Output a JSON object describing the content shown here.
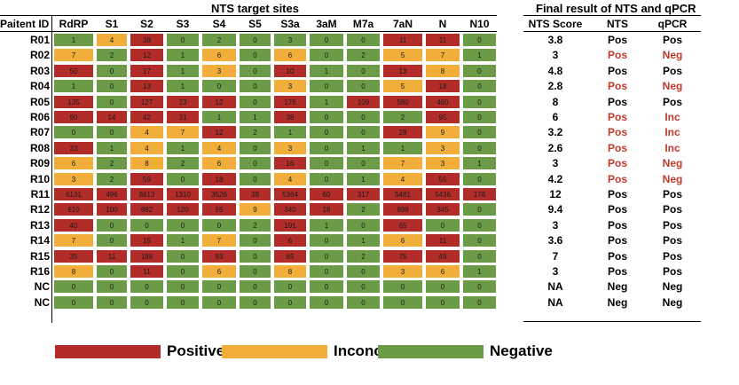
{
  "chart_data": {
    "type": "heatmap",
    "title": "NTS target sites",
    "row_header": "Paitent ID",
    "columns": [
      "RdRP",
      "S1",
      "S2",
      "S3",
      "S4",
      "S5",
      "S3a",
      "3aM",
      "M7a",
      "7aN",
      "N",
      "N10"
    ],
    "rows": [
      {
        "id": "R01",
        "values": [
          1,
          4,
          38,
          0,
          2,
          0,
          3,
          0,
          0,
          11,
          11,
          0
        ],
        "categories": [
          "g",
          "o",
          "r",
          "g",
          "g",
          "g",
          "g",
          "g",
          "g",
          "r",
          "r",
          "g"
        ]
      },
      {
        "id": "R02",
        "values": [
          7,
          2,
          12,
          1,
          6,
          0,
          6,
          0,
          2,
          5,
          7,
          1
        ],
        "categories": [
          "o",
          "g",
          "r",
          "g",
          "o",
          "g",
          "o",
          "g",
          "g",
          "o",
          "o",
          "g"
        ]
      },
      {
        "id": "R03",
        "values": [
          50,
          0,
          17,
          1,
          3,
          0,
          10,
          1,
          0,
          13,
          8,
          0
        ],
        "categories": [
          "r",
          "g",
          "r",
          "g",
          "o",
          "g",
          "r",
          "g",
          "g",
          "r",
          "o",
          "g"
        ]
      },
      {
        "id": "R04",
        "values": [
          1,
          0,
          13,
          1,
          0,
          0,
          3,
          0,
          0,
          5,
          18,
          0
        ],
        "categories": [
          "g",
          "g",
          "r",
          "g",
          "g",
          "g",
          "o",
          "g",
          "g",
          "o",
          "r",
          "g"
        ]
      },
      {
        "id": "R05",
        "values": [
          135,
          0,
          127,
          23,
          12,
          0,
          176,
          1,
          109,
          580,
          460,
          0
        ],
        "categories": [
          "r",
          "g",
          "r",
          "r",
          "r",
          "g",
          "r",
          "g",
          "r",
          "r",
          "r",
          "g"
        ]
      },
      {
        "id": "R06",
        "values": [
          90,
          14,
          42,
          31,
          1,
          1,
          38,
          0,
          0,
          2,
          95,
          0
        ],
        "categories": [
          "r",
          "r",
          "r",
          "r",
          "g",
          "g",
          "r",
          "g",
          "g",
          "g",
          "r",
          "g"
        ]
      },
      {
        "id": "R07",
        "values": [
          0,
          0,
          4,
          7,
          12,
          2,
          1,
          0,
          0,
          28,
          9,
          0
        ],
        "categories": [
          "g",
          "g",
          "o",
          "o",
          "r",
          "g",
          "g",
          "g",
          "g",
          "r",
          "o",
          "g"
        ]
      },
      {
        "id": "R08",
        "values": [
          33,
          1,
          4,
          1,
          4,
          0,
          3,
          0,
          1,
          1,
          3,
          0
        ],
        "categories": [
          "r",
          "g",
          "o",
          "g",
          "o",
          "g",
          "o",
          "g",
          "g",
          "g",
          "o",
          "g"
        ]
      },
      {
        "id": "R09",
        "values": [
          6,
          2,
          8,
          2,
          6,
          0,
          16,
          0,
          0,
          7,
          3,
          1
        ],
        "categories": [
          "o",
          "g",
          "o",
          "g",
          "o",
          "g",
          "r",
          "g",
          "g",
          "o",
          "o",
          "g"
        ]
      },
      {
        "id": "R10",
        "values": [
          3,
          2,
          59,
          0,
          18,
          0,
          4,
          0,
          1,
          4,
          55,
          0
        ],
        "categories": [
          "o",
          "g",
          "r",
          "g",
          "r",
          "g",
          "o",
          "g",
          "g",
          "o",
          "r",
          "g"
        ]
      },
      {
        "id": "R11",
        "values": [
          6131,
          496,
          8613,
          1310,
          3526,
          38,
          5364,
          60,
          317,
          5481,
          5436,
          178
        ],
        "categories": [
          "r",
          "r",
          "r",
          "r",
          "r",
          "r",
          "r",
          "r",
          "r",
          "r",
          "r",
          "r"
        ]
      },
      {
        "id": "R12",
        "values": [
          610,
          100,
          882,
          120,
          55,
          9,
          340,
          18,
          2,
          898,
          345,
          0
        ],
        "categories": [
          "r",
          "r",
          "r",
          "r",
          "r",
          "o",
          "r",
          "r",
          "g",
          "r",
          "r",
          "g"
        ]
      },
      {
        "id": "R13",
        "values": [
          40,
          0,
          0,
          0,
          0,
          2,
          191,
          1,
          0,
          65,
          0,
          0
        ],
        "categories": [
          "r",
          "g",
          "g",
          "g",
          "g",
          "g",
          "r",
          "g",
          "g",
          "r",
          "g",
          "g"
        ]
      },
      {
        "id": "R14",
        "values": [
          7,
          0,
          15,
          1,
          7,
          0,
          6,
          0,
          1,
          6,
          11,
          0
        ],
        "categories": [
          "o",
          "g",
          "r",
          "g",
          "o",
          "g",
          "r",
          "g",
          "g",
          "o",
          "r",
          "g"
        ]
      },
      {
        "id": "R15",
        "values": [
          35,
          11,
          188,
          0,
          93,
          0,
          65,
          0,
          2,
          75,
          49,
          0
        ],
        "categories": [
          "r",
          "r",
          "r",
          "g",
          "r",
          "g",
          "r",
          "g",
          "g",
          "r",
          "r",
          "g"
        ]
      },
      {
        "id": "R16",
        "values": [
          8,
          0,
          11,
          0,
          6,
          0,
          8,
          0,
          0,
          3,
          6,
          1
        ],
        "categories": [
          "o",
          "g",
          "r",
          "g",
          "o",
          "g",
          "o",
          "g",
          "g",
          "o",
          "o",
          "g"
        ]
      },
      {
        "id": "NC",
        "values": [
          0,
          0,
          0,
          0,
          0,
          0,
          0,
          0,
          0,
          0,
          0,
          0
        ],
        "categories": [
          "g",
          "g",
          "g",
          "g",
          "g",
          "g",
          "g",
          "g",
          "g",
          "g",
          "g",
          "g"
        ]
      },
      {
        "id": "NC",
        "values": [
          0,
          0,
          0,
          0,
          0,
          0,
          0,
          0,
          0,
          0,
          0,
          0
        ],
        "categories": [
          "g",
          "g",
          "g",
          "g",
          "g",
          "g",
          "g",
          "g",
          "g",
          "g",
          "g",
          "g"
        ]
      }
    ],
    "category_colors": {
      "r": "#b22d2a",
      "o": "#f2ae3b",
      "g": "#6c9b47"
    },
    "legend": [
      {
        "key": "r",
        "label": "Positive"
      },
      {
        "key": "o",
        "label": "Inconclusive"
      },
      {
        "key": "g",
        "label": "Negative"
      }
    ]
  },
  "result_table": {
    "title": "Final result of NTS and qPCR",
    "headers": [
      "NTS Score",
      "NTS",
      "qPCR"
    ],
    "rows": [
      {
        "score": "3.8",
        "nts": "Pos",
        "qpcr": "Pos",
        "red_nts": false,
        "red_qpcr": false
      },
      {
        "score": "3",
        "nts": "Pos",
        "qpcr": "Neg",
        "red_nts": true,
        "red_qpcr": true
      },
      {
        "score": "4.8",
        "nts": "Pos",
        "qpcr": "Pos",
        "red_nts": false,
        "red_qpcr": false
      },
      {
        "score": "2.8",
        "nts": "Pos",
        "qpcr": "Neg",
        "red_nts": true,
        "red_qpcr": true
      },
      {
        "score": "8",
        "nts": "Pos",
        "qpcr": "Pos",
        "red_nts": false,
        "red_qpcr": false
      },
      {
        "score": "6",
        "nts": "Pos",
        "qpcr": "Inc",
        "red_nts": true,
        "red_qpcr": true
      },
      {
        "score": "3.2",
        "nts": "Pos",
        "qpcr": "Inc",
        "red_nts": true,
        "red_qpcr": true
      },
      {
        "score": "2.6",
        "nts": "Pos",
        "qpcr": "Inc",
        "red_nts": true,
        "red_qpcr": true
      },
      {
        "score": "3",
        "nts": "Pos",
        "qpcr": "Neg",
        "red_nts": true,
        "red_qpcr": true
      },
      {
        "score": "4.2",
        "nts": "Pos",
        "qpcr": "Neg",
        "red_nts": true,
        "red_qpcr": true
      },
      {
        "score": "12",
        "nts": "Pos",
        "qpcr": "Pos",
        "red_nts": false,
        "red_qpcr": false
      },
      {
        "score": "9.4",
        "nts": "Pos",
        "qpcr": "Pos",
        "red_nts": false,
        "red_qpcr": false
      },
      {
        "score": "3",
        "nts": "Pos",
        "qpcr": "Pos",
        "red_nts": false,
        "red_qpcr": false
      },
      {
        "score": "3.6",
        "nts": "Pos",
        "qpcr": "Pos",
        "red_nts": false,
        "red_qpcr": false
      },
      {
        "score": "7",
        "nts": "Pos",
        "qpcr": "Pos",
        "red_nts": false,
        "red_qpcr": false
      },
      {
        "score": "3",
        "nts": "Pos",
        "qpcr": "Pos",
        "red_nts": false,
        "red_qpcr": false
      },
      {
        "score": "NA",
        "nts": "Neg",
        "qpcr": "Neg",
        "red_nts": false,
        "red_qpcr": false
      },
      {
        "score": "NA",
        "nts": "Neg",
        "qpcr": "Neg",
        "red_nts": false,
        "red_qpcr": false
      }
    ],
    "red_text_color": "#c0392b"
  }
}
